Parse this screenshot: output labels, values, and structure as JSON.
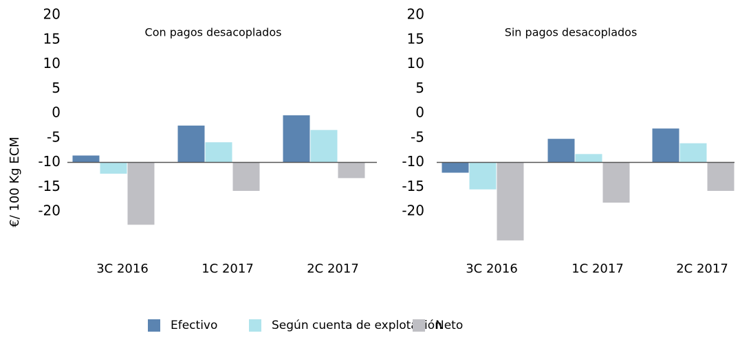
{
  "chart_data": [
    {
      "type": "bar",
      "title": "Con pagos desacoplados",
      "y_label": "€/ 100 Kg ECM",
      "categories": [
        "3C 2016",
        "1C 2017",
        "2C 2017"
      ],
      "series": [
        {
          "name": "Efectivo",
          "color": "#5b84b1",
          "values": [
            -8.6,
            -2.5,
            -0.4
          ]
        },
        {
          "name": "Según cuenta de explotación",
          "color": "#aee3ec",
          "values": [
            -12.3,
            -5.9,
            -3.4
          ]
        },
        {
          "name": "Neto",
          "color": "#bfbfc4",
          "values": [
            -22.7,
            -15.8,
            -13.2
          ]
        }
      ],
      "ylim": [
        -26,
        20
      ],
      "yticks": [
        20,
        15,
        10,
        5,
        0,
        -5,
        -10,
        -15,
        -20
      ],
      "baseline": -10
    },
    {
      "type": "bar",
      "title": "Sin pagos desacoplados",
      "categories": [
        "3C 2016",
        "1C 2017",
        "2C 2017"
      ],
      "series": [
        {
          "name": "Efectivo",
          "color": "#5b84b1",
          "values": [
            -12.1,
            -5.2,
            -3.1
          ]
        },
        {
          "name": "Según cuenta de explotación",
          "color": "#aee3ec",
          "values": [
            -15.5,
            -8.3,
            -6.1
          ]
        },
        {
          "name": "Neto",
          "color": "#bfbfc4",
          "values": [
            -25.9,
            -18.2,
            -15.8
          ]
        }
      ],
      "ylim": [
        -26,
        20
      ],
      "yticks": [
        20,
        15,
        10,
        5,
        0,
        -5,
        -10,
        -15,
        -20
      ],
      "baseline": -10
    }
  ]
}
